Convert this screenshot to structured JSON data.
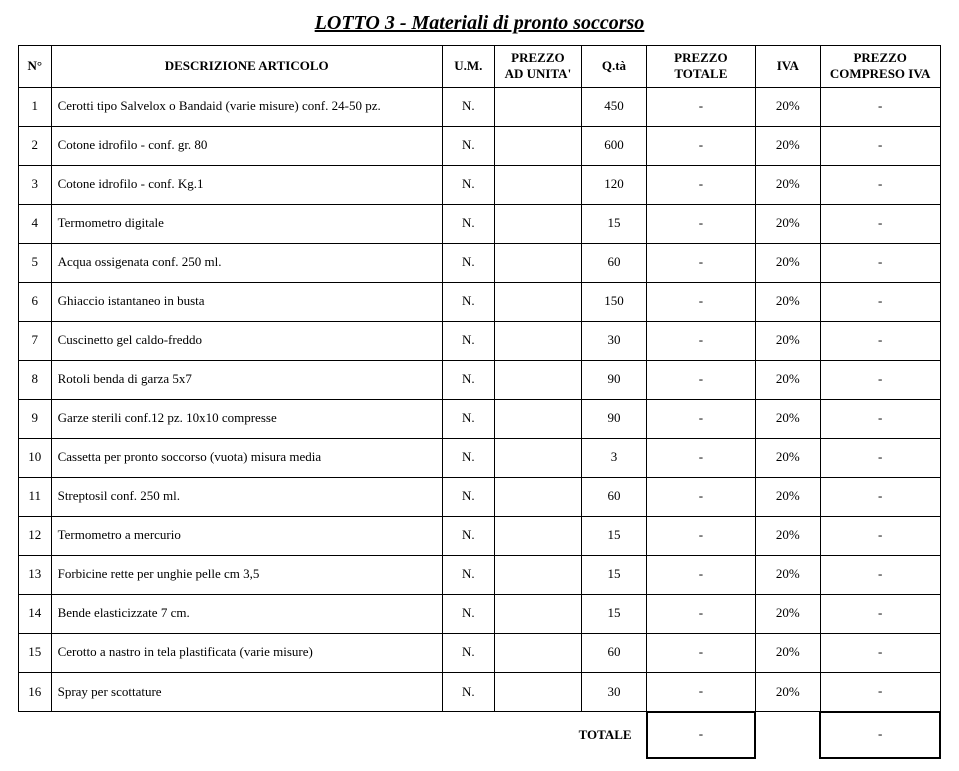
{
  "title": "LOTTO 3 - Materiali di pronto soccorso",
  "headers": {
    "n": "N°",
    "desc": "DESCRIZIONE ARTICOLO",
    "um": "U.M.",
    "pu": "PREZZO AD UNITA'",
    "qta": "Q.tà",
    "pt": "PREZZO TOTALE",
    "iva": "IVA",
    "pci": "PREZZO COMPRESO IVA"
  },
  "rows": [
    {
      "n": "1",
      "desc": "Cerotti tipo Salvelox o Bandaid (varie misure) conf. 24-50 pz.",
      "um": "N.",
      "pu": "",
      "qta": "450",
      "pt": "-",
      "iva": "20%",
      "pci": "-"
    },
    {
      "n": "2",
      "desc": "Cotone idrofilo - conf. gr. 80",
      "um": "N.",
      "pu": "",
      "qta": "600",
      "pt": "-",
      "iva": "20%",
      "pci": "-"
    },
    {
      "n": "3",
      "desc": "Cotone idrofilo - conf. Kg.1",
      "um": "N.",
      "pu": "",
      "qta": "120",
      "pt": "-",
      "iva": "20%",
      "pci": "-"
    },
    {
      "n": "4",
      "desc": "Termometro digitale",
      "um": "N.",
      "pu": "",
      "qta": "15",
      "pt": "-",
      "iva": "20%",
      "pci": "-"
    },
    {
      "n": "5",
      "desc": "Acqua ossigenata conf. 250 ml.",
      "um": "N.",
      "pu": "",
      "qta": "60",
      "pt": "-",
      "iva": "20%",
      "pci": "-"
    },
    {
      "n": "6",
      "desc": "Ghiaccio istantaneo in busta",
      "um": "N.",
      "pu": "",
      "qta": "150",
      "pt": "-",
      "iva": "20%",
      "pci": "-"
    },
    {
      "n": "7",
      "desc": "Cuscinetto gel caldo-freddo",
      "um": "N.",
      "pu": "",
      "qta": "30",
      "pt": "-",
      "iva": "20%",
      "pci": "-"
    },
    {
      "n": "8",
      "desc": "Rotoli benda di garza 5x7",
      "um": "N.",
      "pu": "",
      "qta": "90",
      "pt": "-",
      "iva": "20%",
      "pci": "-"
    },
    {
      "n": "9",
      "desc": "Garze sterili conf.12 pz. 10x10 compresse",
      "um": "N.",
      "pu": "",
      "qta": "90",
      "pt": "-",
      "iva": "20%",
      "pci": "-"
    },
    {
      "n": "10",
      "desc": "Cassetta per pronto soccorso (vuota) misura media",
      "um": "N.",
      "pu": "",
      "qta": "3",
      "pt": "-",
      "iva": "20%",
      "pci": "-"
    },
    {
      "n": "11",
      "desc": "Streptosil conf. 250 ml.",
      "um": "N.",
      "pu": "",
      "qta": "60",
      "pt": "-",
      "iva": "20%",
      "pci": "-"
    },
    {
      "n": "12",
      "desc": "Termometro a mercurio",
      "um": "N.",
      "pu": "",
      "qta": "15",
      "pt": "-",
      "iva": "20%",
      "pci": "-"
    },
    {
      "n": "13",
      "desc": "Forbicine rette per unghie pelle cm 3,5",
      "um": "N.",
      "pu": "",
      "qta": "15",
      "pt": "-",
      "iva": "20%",
      "pci": "-"
    },
    {
      "n": "14",
      "desc": "Bende elasticizzate 7 cm.",
      "um": "N.",
      "pu": "",
      "qta": "15",
      "pt": "-",
      "iva": "20%",
      "pci": "-"
    },
    {
      "n": "15",
      "desc": "Cerotto a nastro in tela plastificata (varie misure)",
      "um": "N.",
      "pu": "",
      "qta": "60",
      "pt": "-",
      "iva": "20%",
      "pci": "-"
    },
    {
      "n": "16",
      "desc": "Spray per scottature",
      "um": "N.",
      "pu": "",
      "qta": "30",
      "pt": "-",
      "iva": "20%",
      "pci": "-"
    }
  ],
  "totale": {
    "label": "TOTALE",
    "pt": "-",
    "pci": "-"
  }
}
